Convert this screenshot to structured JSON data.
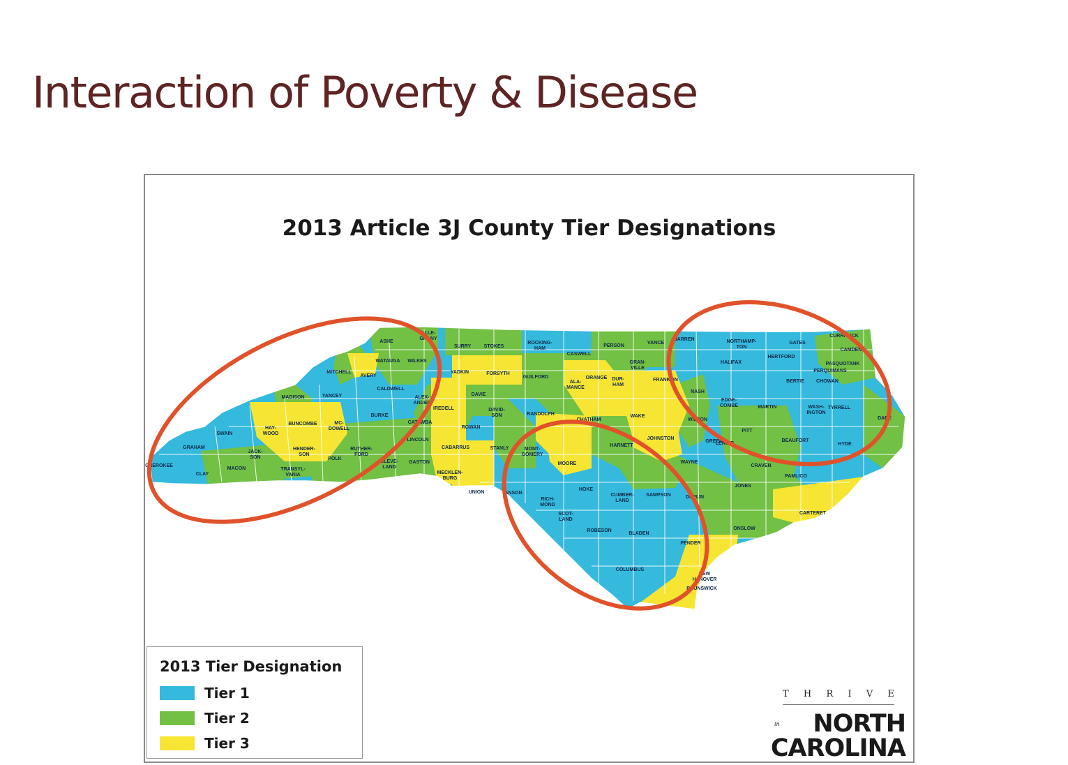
{
  "slide": {
    "title": "Interaction of Poverty & Disease"
  },
  "map": {
    "title": "2013 Article 3J County Tier Designations",
    "colors": {
      "tier1": "#35b9dd",
      "tier2": "#72c044",
      "tier3": "#f7e533",
      "highlight": "#e0522a",
      "county_border": "#ffffff"
    },
    "counties": [
      {
        "name": "ASHE",
        "tier": 2
      },
      {
        "name": "ALLE-\nGHANY",
        "tier": 1
      },
      {
        "name": "SURRY",
        "tier": 2
      },
      {
        "name": "STOKES",
        "tier": 2
      },
      {
        "name": "ROCKING-\nHAM",
        "tier": 1
      },
      {
        "name": "CASWELL",
        "tier": 1
      },
      {
        "name": "PERSON",
        "tier": 2
      },
      {
        "name": "GRAN-\nVILLE",
        "tier": 2
      },
      {
        "name": "VANCE",
        "tier": 1
      },
      {
        "name": "WARREN",
        "tier": 1
      },
      {
        "name": "NORTHAMP-\nTON",
        "tier": 1
      },
      {
        "name": "GATES",
        "tier": 1
      },
      {
        "name": "CURRITUCK",
        "tier": 2
      },
      {
        "name": "CAMDEN",
        "tier": 2
      },
      {
        "name": "PASQUOTANK",
        "tier": 2
      },
      {
        "name": "PERQUIMANS",
        "tier": 2
      },
      {
        "name": "CHOWAN",
        "tier": 2
      },
      {
        "name": "HERTFORD",
        "tier": 1
      },
      {
        "name": "HALIFAX",
        "tier": 1
      },
      {
        "name": "BERTIE",
        "tier": 1
      },
      {
        "name": "WATAUGA",
        "tier": 3
      },
      {
        "name": "WILKES",
        "tier": 1
      },
      {
        "name": "AVERY",
        "tier": 2
      },
      {
        "name": "MITCHELL",
        "tier": 1
      },
      {
        "name": "YANCEY",
        "tier": 1
      },
      {
        "name": "MADISON",
        "tier": 2
      },
      {
        "name": "CALDWELL",
        "tier": 1
      },
      {
        "name": "YADKIN",
        "tier": 2
      },
      {
        "name": "FORSYTH",
        "tier": 3
      },
      {
        "name": "GUILFORD",
        "tier": 2
      },
      {
        "name": "ALA-\nMANCE",
        "tier": 2
      },
      {
        "name": "ORANGE",
        "tier": 3
      },
      {
        "name": "DUR-\nHAM",
        "tier": 3
      },
      {
        "name": "FRANKLIN",
        "tier": 3
      },
      {
        "name": "NASH",
        "tier": 2
      },
      {
        "name": "EDGE-\nCOMBE",
        "tier": 1
      },
      {
        "name": "MARTIN",
        "tier": 1
      },
      {
        "name": "WASH-\nINGTON",
        "tier": 1
      },
      {
        "name": "TYRRELL",
        "tier": 1
      },
      {
        "name": "DARE",
        "tier": 2
      },
      {
        "name": "HAY-\nWOOD",
        "tier": 3
      },
      {
        "name": "BUNCOMBE",
        "tier": 3
      },
      {
        "name": "MC-\nDOWELL",
        "tier": 1
      },
      {
        "name": "BURKE",
        "tier": 1
      },
      {
        "name": "ALEX-\nANDER",
        "tier": 2
      },
      {
        "name": "IREDELL",
        "tier": 3
      },
      {
        "name": "DAVIE",
        "tier": 2
      },
      {
        "name": "DAVID-\nSON",
        "tier": 2
      },
      {
        "name": "RANDOLPH",
        "tier": 2
      },
      {
        "name": "CHATHAM",
        "tier": 3
      },
      {
        "name": "WAKE",
        "tier": 3
      },
      {
        "name": "WILSON",
        "tier": 1
      },
      {
        "name": "PITT",
        "tier": 2
      },
      {
        "name": "BEAUFORT",
        "tier": 2
      },
      {
        "name": "HYDE",
        "tier": 1
      },
      {
        "name": "SWAIN",
        "tier": 1
      },
      {
        "name": "GRAHAM",
        "tier": 1
      },
      {
        "name": "JACK-\nSON",
        "tier": 1
      },
      {
        "name": "HENDER-\nSON",
        "tier": 3
      },
      {
        "name": "RUTHER-\nFORD",
        "tier": 1
      },
      {
        "name": "CATAWBA",
        "tier": 2
      },
      {
        "name": "LINCOLN",
        "tier": 2
      },
      {
        "name": "ROWAN",
        "tier": 2
      },
      {
        "name": "CABARRUS",
        "tier": 3
      },
      {
        "name": "JOHNSTON",
        "tier": 3
      },
      {
        "name": "GREENE",
        "tier": 2
      },
      {
        "name": "CHEROKEE",
        "tier": 1
      },
      {
        "name": "CLAY",
        "tier": 1
      },
      {
        "name": "MACON",
        "tier": 2
      },
      {
        "name": "TRANSYL-\nVANIA",
        "tier": 2
      },
      {
        "name": "POLK",
        "tier": 3
      },
      {
        "name": "CLEVE-\nLAND",
        "tier": 2
      },
      {
        "name": "GASTON",
        "tier": 2
      },
      {
        "name": "MECKLEN-\nBURG",
        "tier": 3
      },
      {
        "name": "STANLY",
        "tier": 2
      },
      {
        "name": "MONT-\nGOMERY",
        "tier": 1
      },
      {
        "name": "MOORE",
        "tier": 3
      },
      {
        "name": "HARNETT",
        "tier": 2
      },
      {
        "name": "WAYNE",
        "tier": 2
      },
      {
        "name": "LENOIR",
        "tier": 1
      },
      {
        "name": "CRAVEN",
        "tier": 2
      },
      {
        "name": "PAMLICO",
        "tier": 2
      },
      {
        "name": "JONES",
        "tier": 1
      },
      {
        "name": "UNION",
        "tier": 3
      },
      {
        "name": "ANSON",
        "tier": 1
      },
      {
        "name": "RICH-\nMOND",
        "tier": 1
      },
      {
        "name": "HOKE",
        "tier": 1
      },
      {
        "name": "CUMBER-\nLAND",
        "tier": 2
      },
      {
        "name": "SAMPSON",
        "tier": 2
      },
      {
        "name": "DUPLIN",
        "tier": 2
      },
      {
        "name": "ONSLOW",
        "tier": 2
      },
      {
        "name": "CARTERET",
        "tier": 3
      },
      {
        "name": "SCOT-\nLAND",
        "tier": 1
      },
      {
        "name": "ROBESON",
        "tier": 1
      },
      {
        "name": "BLADEN",
        "tier": 1
      },
      {
        "name": "PENDER",
        "tier": 3
      },
      {
        "name": "COLUMBUS",
        "tier": 1
      },
      {
        "name": "NEW\nHANOVER",
        "tier": 3
      },
      {
        "name": "BRUNSWICK",
        "tier": 3
      }
    ]
  },
  "legend": {
    "title": "2013 Tier Designation",
    "items": [
      {
        "label": "Tier 1",
        "color": "#35b9dd"
      },
      {
        "label": "Tier 2",
        "color": "#72c044"
      },
      {
        "label": "Tier 3",
        "color": "#f7e533"
      }
    ]
  },
  "logo": {
    "line_top": "T H R I V E",
    "prefix": "in",
    "line1": "NORTH",
    "line2": "CAROLINA"
  }
}
